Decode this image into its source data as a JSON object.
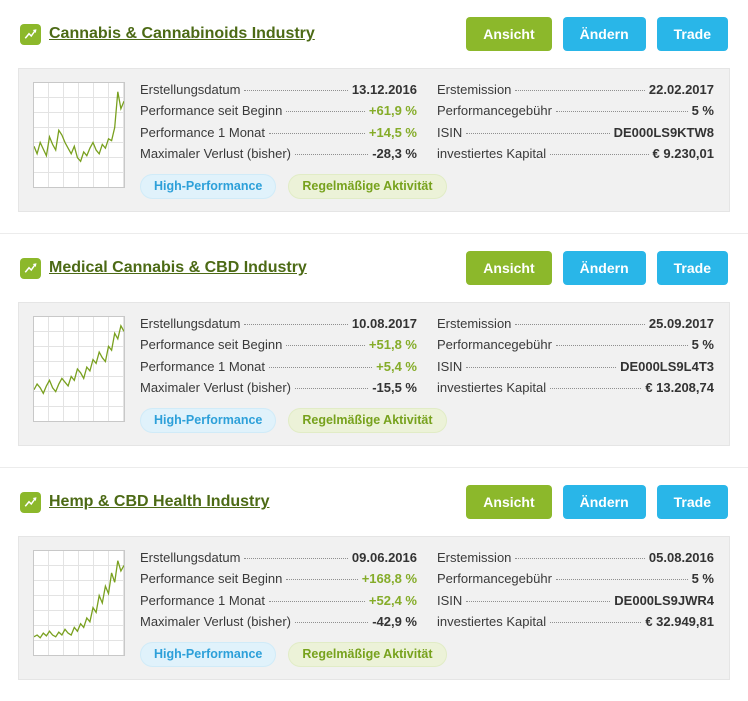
{
  "buttons": {
    "ansicht": "Ansicht",
    "aendern": "Ändern",
    "trade": "Trade"
  },
  "labels": {
    "created": "Erstellungsdatum",
    "perf_since": "Performance seit Beginn",
    "perf_month": "Performance 1 Monat",
    "max_loss": "Maximaler Verlust (bisher)",
    "first_issue": "Erstemission",
    "fee": "Performancegebühr",
    "isin": "ISIN",
    "invested": "investiertes Kapital"
  },
  "badges": {
    "high_performance": "High-Performance",
    "regular_activity": "Regelmäßige Aktivität"
  },
  "colors": {
    "accent_green": "#8cb82b",
    "accent_blue": "#29b6e8",
    "title_green": "#4c6a15",
    "badge_blue_text": "#2da0d9",
    "badge_green_text": "#77a21d"
  },
  "cards": [
    {
      "title": "Cannabis & Cannabinoids Industry",
      "created": "13.12.2016",
      "perf_since": "+61,9 %",
      "perf_month": "+14,5 %",
      "max_loss": "-28,3 %",
      "first_issue": "22.02.2017",
      "fee": "5 %",
      "isin": "DE000LS9KTW8",
      "invested": "€ 9.230,01",
      "sparkline": [
        38,
        30,
        42,
        35,
        28,
        48,
        40,
        34,
        55,
        50,
        42,
        36,
        30,
        38,
        26,
        22,
        32,
        28,
        36,
        42,
        34,
        30,
        40,
        36,
        46,
        44,
        58,
        96,
        78,
        86
      ]
    },
    {
      "title": "Medical Cannabis & CBD Industry",
      "created": "10.08.2017",
      "perf_since": "+51,8 %",
      "perf_month": "+5,4 %",
      "max_loss": "-15,5 %",
      "first_issue": "25.09.2017",
      "fee": "5 %",
      "isin": "DE000LS9L4T3",
      "invested": "€ 13.208,74",
      "sparkline": [
        28,
        34,
        30,
        24,
        32,
        38,
        30,
        26,
        34,
        40,
        36,
        32,
        42,
        38,
        50,
        46,
        40,
        52,
        48,
        60,
        56,
        68,
        62,
        58,
        74,
        70,
        88,
        82,
        96,
        90
      ]
    },
    {
      "title": "Hemp & CBD Health Industry",
      "created": "09.06.2016",
      "perf_since": "+168,8 %",
      "perf_month": "+52,4 %",
      "max_loss": "-42,9 %",
      "first_issue": "05.08.2016",
      "fee": "5 %",
      "isin": "DE000LS9JWR4",
      "invested": "€ 32.949,81",
      "sparkline": [
        14,
        16,
        13,
        18,
        15,
        20,
        16,
        14,
        19,
        16,
        22,
        18,
        16,
        24,
        20,
        28,
        24,
        34,
        30,
        45,
        40,
        58,
        50,
        68,
        60,
        82,
        72,
        95,
        84,
        90
      ]
    }
  ]
}
